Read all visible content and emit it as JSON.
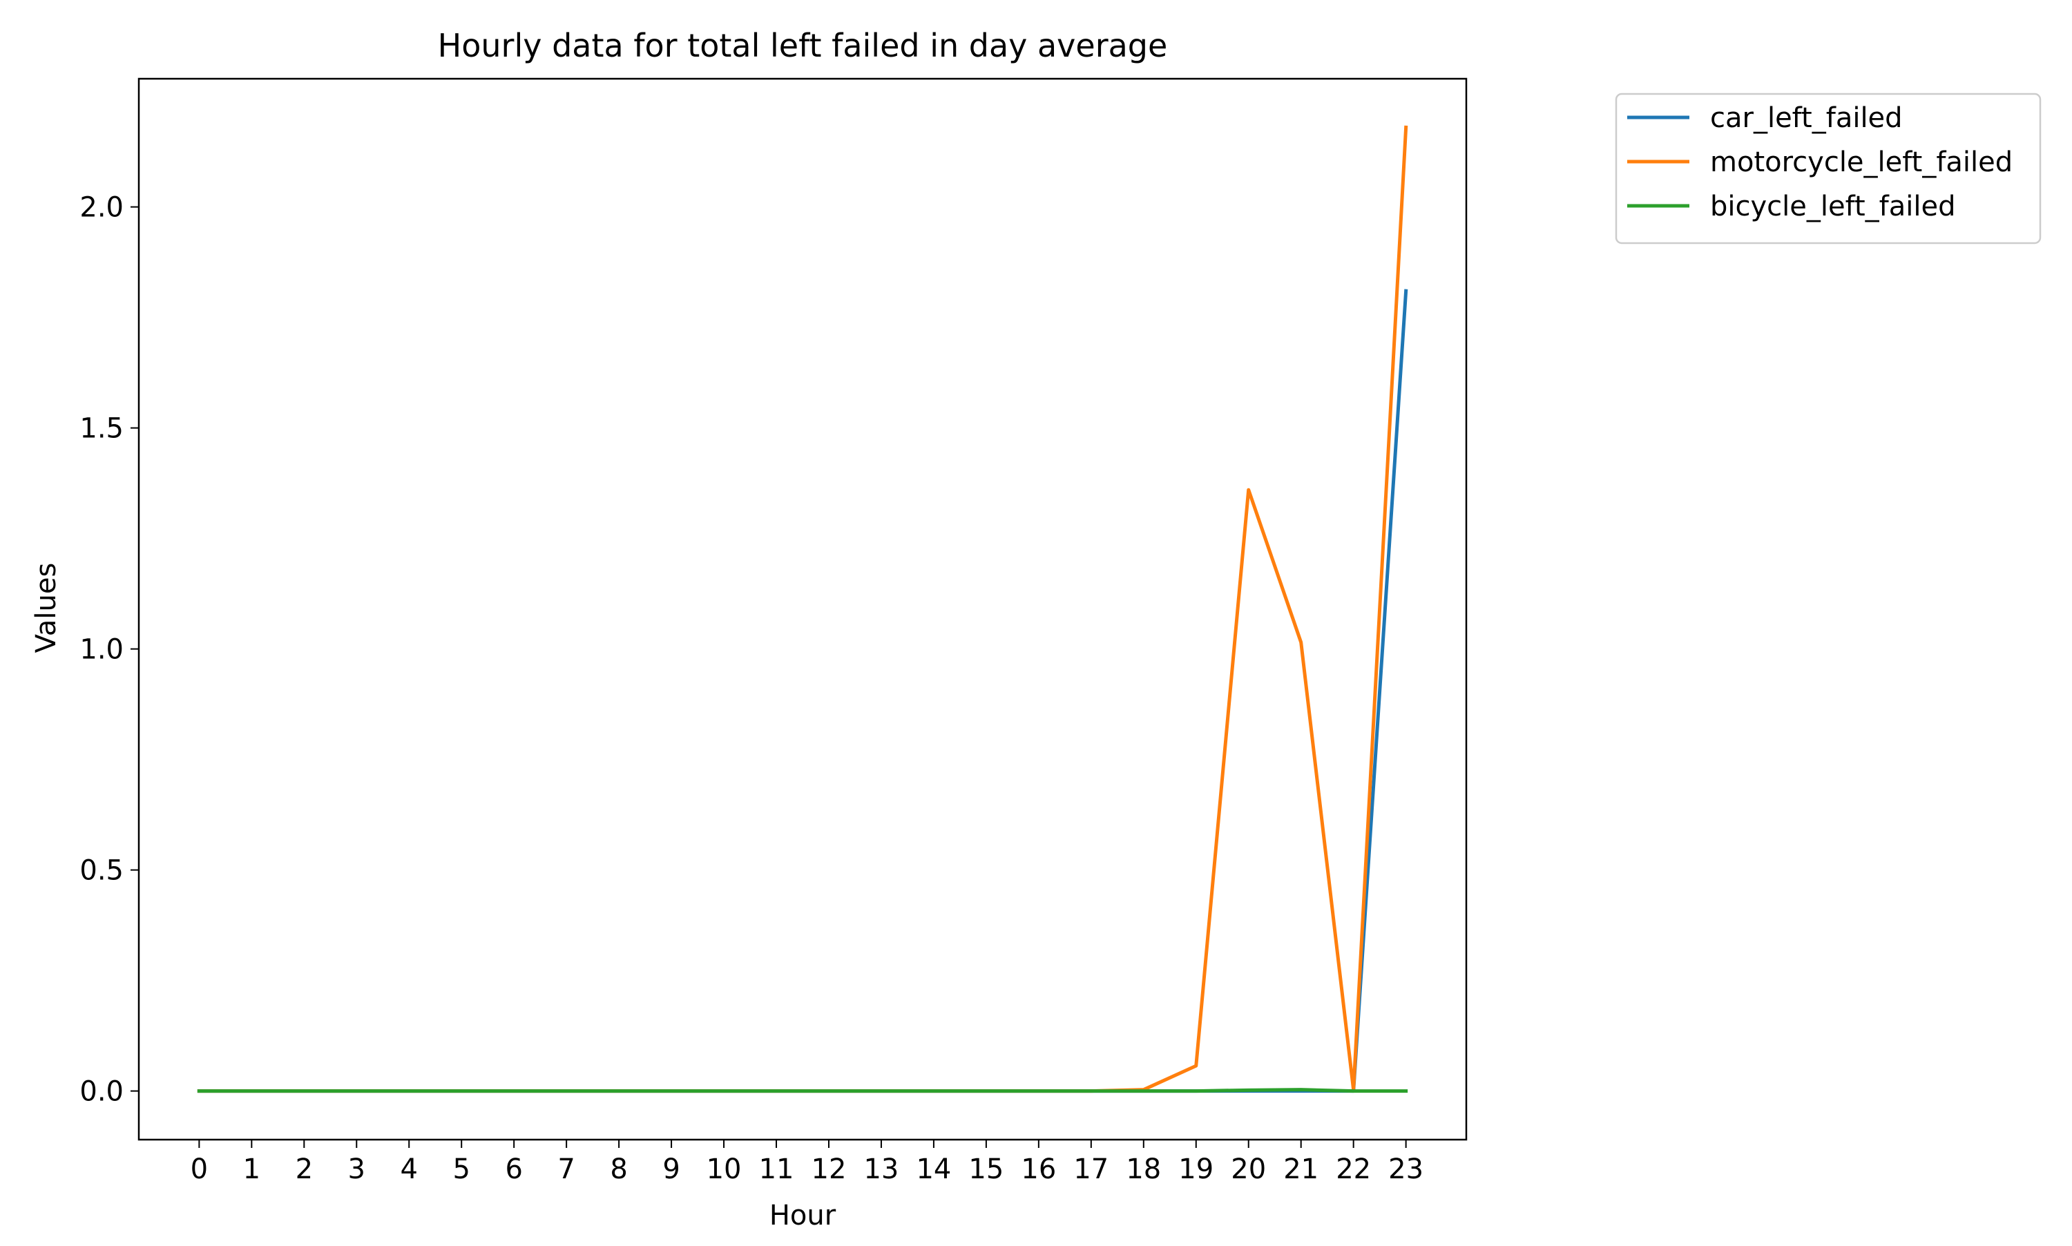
{
  "chart_data": {
    "type": "line",
    "title": "Hourly data for total left failed in day average",
    "xlabel": "Hour",
    "ylabel": "Values",
    "x": [
      0,
      1,
      2,
      3,
      4,
      5,
      6,
      7,
      8,
      9,
      10,
      11,
      12,
      13,
      14,
      15,
      16,
      17,
      18,
      19,
      20,
      21,
      22,
      23
    ],
    "xlim": [
      -1.15,
      24.15
    ],
    "ylim": [
      -0.11,
      2.29
    ],
    "yticks": [
      0.0,
      0.5,
      1.0,
      1.5,
      2.0
    ],
    "ytick_labels": [
      "0.0",
      "0.5",
      "1.0",
      "1.5",
      "2.0"
    ],
    "xtick_labels": [
      "0",
      "1",
      "2",
      "3",
      "4",
      "5",
      "6",
      "7",
      "8",
      "9",
      "10",
      "11",
      "12",
      "13",
      "14",
      "15",
      "16",
      "17",
      "18",
      "19",
      "20",
      "21",
      "22",
      "23"
    ],
    "grid": false,
    "legend_position": "outside upper right",
    "series": [
      {
        "name": "car_left_failed",
        "color": "#1f77b4",
        "values": [
          0,
          0,
          0,
          0,
          0,
          0,
          0,
          0,
          0,
          0,
          0,
          0,
          0,
          0,
          0,
          0,
          0,
          0,
          0,
          0,
          0,
          0,
          0,
          1.81
        ]
      },
      {
        "name": "motorcycle_left_failed",
        "color": "#ff7f0e",
        "values": [
          0,
          0,
          0,
          0,
          0,
          0,
          0,
          0,
          0,
          0,
          0,
          0,
          0,
          0,
          0,
          0,
          0,
          0,
          0.003,
          0.057,
          1.36,
          1.015,
          0.003,
          2.18
        ]
      },
      {
        "name": "bicycle_left_failed",
        "color": "#2ca02c",
        "values": [
          0,
          0,
          0,
          0,
          0,
          0,
          0,
          0,
          0,
          0,
          0,
          0,
          0,
          0,
          0,
          0,
          0,
          0,
          0,
          0,
          0.002,
          0.003,
          0,
          0
        ]
      }
    ]
  }
}
